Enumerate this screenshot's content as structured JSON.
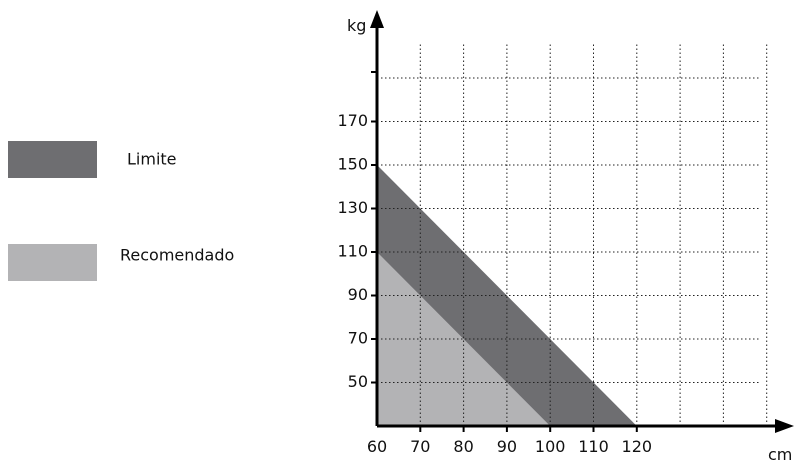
{
  "chart_data": {
    "type": "area",
    "x_unit": "cm",
    "y_unit": "kg",
    "x_ticks": [
      60,
      70,
      80,
      90,
      100,
      110,
      120
    ],
    "y_ticks": [
      50,
      70,
      90,
      110,
      130,
      150,
      170
    ],
    "xlim": [
      60,
      150
    ],
    "ylim": [
      30,
      200
    ],
    "grid": true,
    "series": [
      {
        "name": "Limite",
        "color": "#6e6e71",
        "points": [
          [
            60,
            150
          ],
          [
            120,
            30
          ]
        ]
      },
      {
        "name": "Recomendado",
        "color": "#b3b3b5",
        "points": [
          [
            60,
            110
          ],
          [
            100,
            30
          ]
        ]
      }
    ],
    "legend": [
      {
        "label": "Limite",
        "color": "#6e6e71"
      },
      {
        "label": "Recomendado",
        "color": "#b3b3b5"
      }
    ],
    "legend_position": "left"
  }
}
